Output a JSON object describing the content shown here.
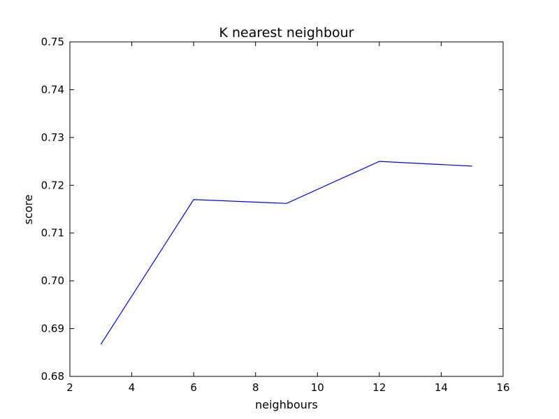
{
  "chart_data": {
    "type": "line",
    "title": "K nearest neighbour",
    "xlabel": "neighbours",
    "ylabel": "score",
    "xlim": [
      2,
      16
    ],
    "ylim": [
      0.68,
      0.75
    ],
    "xticks": [
      "2",
      "4",
      "6",
      "8",
      "10",
      "12",
      "14",
      "16"
    ],
    "yticks": [
      "0.68",
      "0.69",
      "0.70",
      "0.71",
      "0.72",
      "0.73",
      "0.74",
      "0.75"
    ],
    "grid": false,
    "series": [
      {
        "color": "#0000ff",
        "x": [
          3,
          6,
          9,
          12,
          15
        ],
        "y": [
          0.6867,
          0.717,
          0.7162,
          0.725,
          0.724
        ]
      }
    ]
  }
}
